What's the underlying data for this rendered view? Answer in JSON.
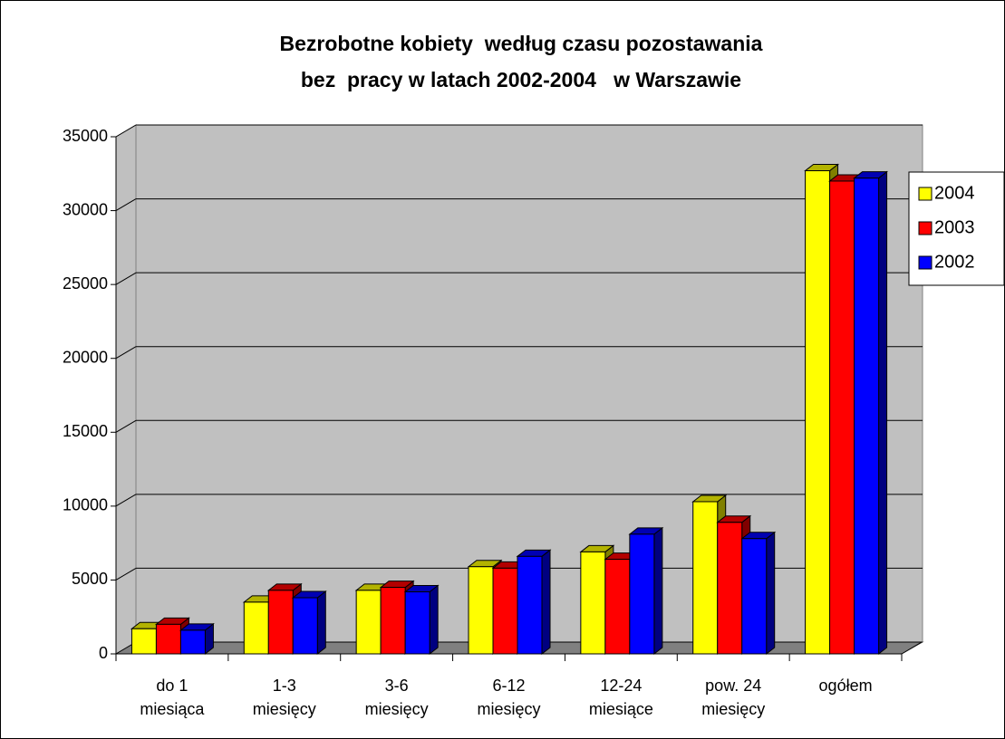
{
  "chart_data": {
    "type": "bar3d",
    "title": [
      "Bezrobotne kobiety  według czasu pozostawania",
      "bez  pracy w latach 2002-2004   w Warszawie"
    ],
    "categories": [
      [
        "do 1",
        "miesiąca"
      ],
      [
        "1-3",
        "miesięcy"
      ],
      [
        "3-6",
        "miesięcy"
      ],
      [
        "6-12",
        "miesięcy"
      ],
      [
        "12-24",
        "miesiące"
      ],
      [
        "pow. 24",
        "miesięcy"
      ],
      [
        "ogółem"
      ]
    ],
    "series": [
      {
        "name": "2004",
        "color": "#ffff00",
        "values": [
          1700,
          3500,
          4300,
          5900,
          6900,
          10300,
          32700
        ]
      },
      {
        "name": "2003",
        "color": "#ff0000",
        "values": [
          2000,
          4300,
          4500,
          5800,
          6400,
          8900,
          32000
        ]
      },
      {
        "name": "2002",
        "color": "#0000ff",
        "values": [
          1600,
          3800,
          4200,
          6600,
          8100,
          7800,
          32200
        ]
      }
    ],
    "ylim": [
      0,
      35000
    ],
    "yticks": [
      0,
      5000,
      10000,
      15000,
      20000,
      25000,
      30000,
      35000
    ],
    "grid": true,
    "legend": "right"
  }
}
